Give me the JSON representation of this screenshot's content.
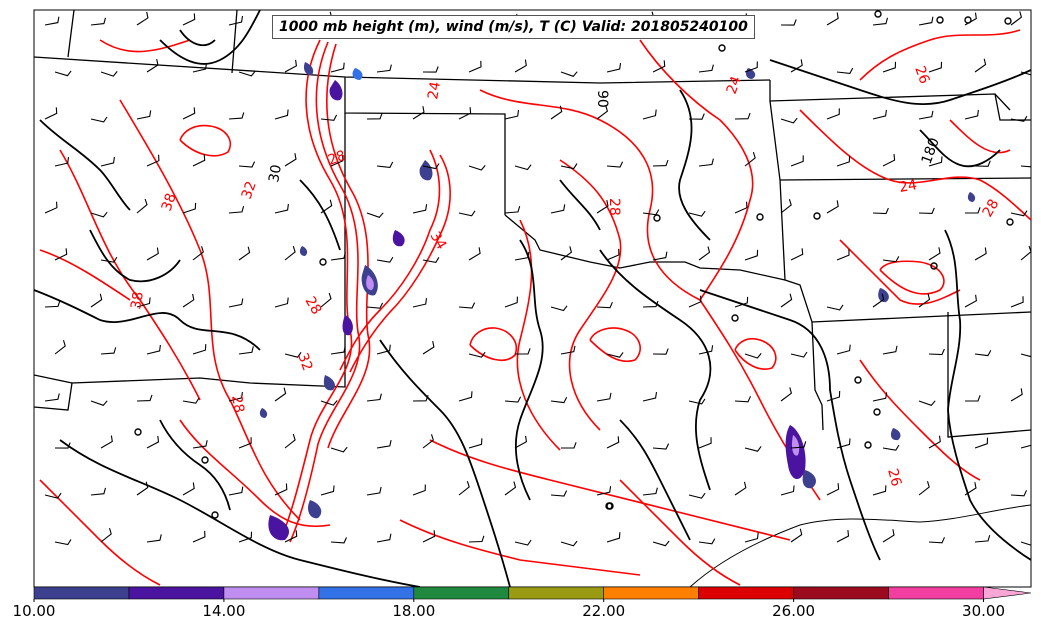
{
  "title": "1000 mb height (m), wind (m/s), T (C) Valid: 201805240100",
  "colorbar": {
    "min": 10,
    "max": 31,
    "tick_labels": [
      "10.00",
      "14.00",
      "18.00",
      "22.00",
      "26.00",
      "30.00"
    ],
    "tick_values": [
      10,
      14,
      18,
      22,
      26,
      30
    ],
    "bins": [
      {
        "from": 10,
        "to": 12,
        "color": "#3d3f8f"
      },
      {
        "from": 12,
        "to": 14,
        "color": "#4b14a0"
      },
      {
        "from": 14,
        "to": 16,
        "color": "#c08ef0"
      },
      {
        "from": 16,
        "to": 18,
        "color": "#3371e6"
      },
      {
        "from": 18,
        "to": 20,
        "color": "#1f8a3f"
      },
      {
        "from": 20,
        "to": 22,
        "color": "#9a9a13"
      },
      {
        "from": 22,
        "to": 24,
        "color": "#ff7f00"
      },
      {
        "from": 24,
        "to": 26,
        "color": "#dd0000"
      },
      {
        "from": 26,
        "to": 28,
        "color": "#9c0a1f"
      },
      {
        "from": 28,
        "to": 30,
        "color": "#f33ea1"
      },
      {
        "from": 30,
        "to": 31,
        "color": "#f7a6d6"
      }
    ]
  },
  "contour_labels": [
    {
      "text": "26"
    },
    {
      "text": "24"
    },
    {
      "text": "28"
    },
    {
      "text": "32"
    },
    {
      "text": "38"
    },
    {
      "text": "38"
    },
    {
      "text": "30"
    },
    {
      "text": "28"
    },
    {
      "text": "28"
    },
    {
      "text": "34"
    },
    {
      "text": "32"
    },
    {
      "text": "28"
    },
    {
      "text": "24"
    },
    {
      "text": "28"
    },
    {
      "text": "26"
    },
    {
      "text": "24"
    },
    {
      "text": "90"
    },
    {
      "text": "180"
    }
  ],
  "colors": {
    "temperature_contour": "#ff0000",
    "height_contour": "#000000",
    "boundaries": "#000000"
  }
}
